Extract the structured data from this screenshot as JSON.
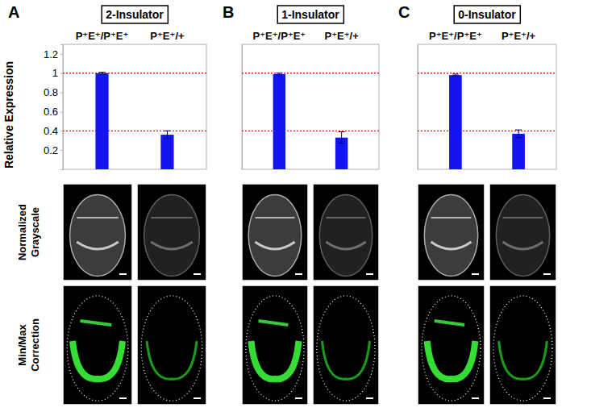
{
  "chart_data": [
    {
      "type": "bar",
      "panel_label": "A",
      "title": "2-Insulator",
      "ylabel": "Relative Expression",
      "categories": [
        "P⁺E⁺/P⁺E⁺",
        "P⁺E⁺/+"
      ],
      "values": [
        1.0,
        0.36
      ],
      "errors": [
        0.01,
        0.04
      ],
      "color": "#1414f0",
      "ylim": [
        0,
        1.3
      ],
      "yticks": [
        0.2,
        0.4,
        0.6,
        0.8,
        1,
        1.2
      ],
      "reference_lines": [
        1,
        0.4
      ],
      "grid": false
    },
    {
      "type": "bar",
      "panel_label": "B",
      "title": "1-Insulator",
      "categories": [
        "P⁺E⁺/P⁺E⁺",
        "P⁺E⁺/+"
      ],
      "values": [
        0.99,
        0.33
      ],
      "errors": [
        0.01,
        0.06
      ],
      "color": "#1414f0",
      "ylim": [
        0,
        1.3
      ],
      "tick_labels": false,
      "reference_lines": [
        1,
        0.4
      ],
      "grid": false
    },
    {
      "type": "bar",
      "panel_label": "C",
      "title": "0-Insulator",
      "categories": [
        "P⁺E⁺/P⁺E⁺",
        "P⁺E⁺/+"
      ],
      "values": [
        0.98,
        0.37
      ],
      "errors": [
        0.01,
        0.04
      ],
      "color": "#1414f0",
      "ylim": [
        0,
        1.3
      ],
      "tick_labels": false,
      "reference_lines": [
        1,
        0.4
      ],
      "grid": false
    }
  ],
  "images": {
    "row_labels": [
      [
        "Normalized",
        "Grayscale"
      ],
      [
        "Min/Max",
        "Correction"
      ]
    ]
  }
}
